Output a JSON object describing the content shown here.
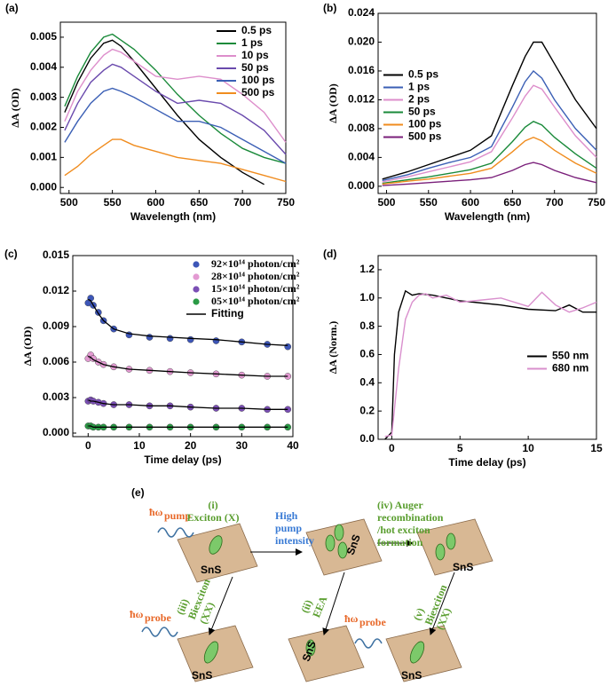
{
  "chart_data": [
    {
      "type": "line",
      "label": "(a)",
      "xlabel": "Wavelength (nm)",
      "ylabel": "ΔA (OD)",
      "legend": "upper right",
      "xlim": [
        490,
        750
      ],
      "ylim": [
        -0.0002,
        0.0055
      ],
      "xticks": [
        500,
        550,
        600,
        650,
        700,
        750
      ],
      "yticks": [
        {
          "value": 0,
          "label": "0.000"
        },
        0.001,
        0.002,
        0.003,
        0.004,
        0.005
      ],
      "x": [
        495,
        510,
        525,
        540,
        550,
        560,
        575,
        600,
        625,
        650,
        675,
        700,
        725,
        750
      ],
      "series": [
        {
          "name": "0.5 ps",
          "color": "#000000",
          "values": [
            0.0025,
            0.0035,
            0.0043,
            0.0048,
            0.0049,
            0.0047,
            0.0042,
            0.0033,
            0.0024,
            0.0016,
            0.001,
            0.0005,
            0.0001,
            null
          ]
        },
        {
          "name": "1 ps",
          "color": "#1a8a3a",
          "values": [
            0.0027,
            0.0037,
            0.0045,
            0.005,
            0.0051,
            0.0049,
            0.0046,
            0.0039,
            0.0031,
            0.0024,
            0.0018,
            0.0013,
            0.001,
            0.0008
          ]
        },
        {
          "name": "10 ps",
          "color": "#dd8ecb",
          "values": [
            0.0022,
            0.0032,
            0.0039,
            0.0044,
            0.0046,
            0.0045,
            0.0042,
            0.0037,
            0.0036,
            0.0037,
            0.0036,
            0.0031,
            0.0025,
            0.0015
          ]
        },
        {
          "name": "50 ps",
          "color": "#6a4aad",
          "values": [
            0.0019,
            0.0028,
            0.0035,
            0.0039,
            0.0041,
            0.004,
            0.0037,
            0.0032,
            0.0028,
            0.0029,
            0.0028,
            0.0024,
            0.0019,
            0.0011
          ]
        },
        {
          "name": "100 ps",
          "color": "#3b5fb5",
          "values": [
            0.0015,
            0.0022,
            0.0028,
            0.0032,
            0.0033,
            0.0032,
            0.003,
            0.0026,
            0.0022,
            0.0022,
            0.002,
            0.0016,
            0.0012,
            0.0008
          ]
        },
        {
          "name": "500 ps",
          "color": "#f08c1e",
          "values": [
            0.0004,
            0.0007,
            0.0011,
            0.0014,
            0.0016,
            0.0016,
            0.0014,
            0.0012,
            0.001,
            0.0009,
            0.0008,
            0.0006,
            0.0004,
            0.0002
          ]
        }
      ]
    },
    {
      "type": "line",
      "label": "(b)",
      "xlabel": "Wavelength (nm)",
      "ylabel": "ΔA (OD)",
      "legend": "center left",
      "xlim": [
        490,
        750
      ],
      "ylim": [
        -0.001,
        0.024
      ],
      "xticks": [
        500,
        550,
        600,
        650,
        700,
        750
      ],
      "yticks": [
        {
          "value": 0,
          "label": "0.000"
        },
        0.004,
        0.008,
        0.012,
        0.016,
        {
          "value": 0.02,
          "label": "0.020"
        },
        0.024
      ],
      "x": [
        495,
        525,
        550,
        575,
        600,
        625,
        650,
        665,
        675,
        685,
        700,
        725,
        750
      ],
      "series": [
        {
          "name": "0.5 ps",
          "color": "#000000",
          "values": [
            0.001,
            0.002,
            0.003,
            0.004,
            0.005,
            0.007,
            0.014,
            0.018,
            0.02,
            0.02,
            0.017,
            0.012,
            0.008
          ]
        },
        {
          "name": "1 ps",
          "color": "#3b5fb5",
          "values": [
            0.0008,
            0.0016,
            0.0025,
            0.0033,
            0.004,
            0.0055,
            0.011,
            0.0145,
            0.016,
            0.015,
            0.012,
            0.008,
            0.005
          ]
        },
        {
          "name": "2 ps",
          "color": "#dd8ecb",
          "values": [
            0.0006,
            0.0013,
            0.002,
            0.0027,
            0.0034,
            0.0048,
            0.0095,
            0.0125,
            0.014,
            0.0135,
            0.011,
            0.007,
            0.004
          ]
        },
        {
          "name": "50 ps",
          "color": "#1a8a3a",
          "values": [
            0.0004,
            0.0009,
            0.0013,
            0.0018,
            0.0023,
            0.0032,
            0.0062,
            0.0082,
            0.009,
            0.0085,
            0.0068,
            0.0045,
            0.0025
          ]
        },
        {
          "name": "100 ps",
          "color": "#f08c1e",
          "values": [
            0.0003,
            0.0007,
            0.001,
            0.0014,
            0.0018,
            0.0025,
            0.0048,
            0.0063,
            0.0068,
            0.0063,
            0.005,
            0.0032,
            0.0018
          ]
        },
        {
          "name": "500 ps",
          "color": "#7a1f7a",
          "values": [
            0.0001,
            0.0003,
            0.0005,
            0.0007,
            0.0009,
            0.0012,
            0.0022,
            0.003,
            0.0033,
            0.003,
            0.0022,
            0.0012,
            0.0005
          ]
        }
      ]
    },
    {
      "type": "scatter",
      "label": "(c)",
      "xlabel": "Time delay (ps)",
      "ylabel": "ΔA (OD)",
      "legend": "upper right",
      "xlim": [
        -3,
        40
      ],
      "ylim": [
        -0.0003,
        0.015
      ],
      "xticks": [
        0,
        10,
        20,
        30,
        40
      ],
      "yticks": [
        {
          "value": 0,
          "label": "0.000"
        },
        0.003,
        0.006,
        0.009,
        0.012,
        0.015
      ],
      "x": [
        0,
        0.5,
        1,
        2,
        3,
        5,
        8,
        12,
        16,
        20,
        25,
        30,
        35,
        39
      ],
      "fit_name": "Fitting",
      "series": [
        {
          "name": "92×10¹⁴ photon/cm²",
          "color": "#3d56b8",
          "values": [
            0.011,
            0.0114,
            0.0108,
            0.0102,
            0.0095,
            0.0088,
            0.0083,
            0.0081,
            0.008,
            0.0079,
            0.0078,
            0.0077,
            0.0075,
            0.0073
          ],
          "fit": [
            0.0113,
            0.0112,
            0.0108,
            0.0101,
            0.0095,
            0.0088,
            0.0084,
            0.0082,
            0.0081,
            0.008,
            0.0079,
            0.0077,
            0.0075,
            0.0074
          ]
        },
        {
          "name": "28×10¹⁴ photon/cm²",
          "color": "#e39ad2",
          "values": [
            0.0063,
            0.0066,
            0.0063,
            0.006,
            0.0058,
            0.0056,
            0.0054,
            0.0053,
            0.0052,
            0.0051,
            0.005,
            0.0049,
            0.0048,
            0.0048
          ],
          "fit": [
            0.0065,
            0.0064,
            0.0062,
            0.006,
            0.0058,
            0.0056,
            0.0054,
            0.0053,
            0.0052,
            0.0051,
            0.005,
            0.0049,
            0.0048,
            0.0048
          ]
        },
        {
          "name": "15×10¹⁴ photon/cm²",
          "color": "#7b4fb5",
          "values": [
            0.0027,
            0.0028,
            0.0027,
            0.0026,
            0.0025,
            0.0024,
            0.0024,
            0.0023,
            0.0023,
            0.0022,
            0.0021,
            0.0021,
            0.002,
            0.002
          ],
          "fit": [
            0.0028,
            0.0027,
            0.0027,
            0.0026,
            0.0025,
            0.0024,
            0.0024,
            0.0023,
            0.0023,
            0.0022,
            0.0021,
            0.0021,
            0.002,
            0.002
          ]
        },
        {
          "name": "05×10¹⁴ photon/cm²",
          "color": "#2a9a45",
          "values": [
            0.0006,
            0.0006,
            0.0005,
            0.0005,
            0.0005,
            0.0005,
            0.0005,
            0.0005,
            0.0005,
            0.0005,
            0.0005,
            0.0005,
            0.0005,
            0.0005
          ],
          "fit": [
            0.0006,
            0.0006,
            0.0005,
            0.0005,
            0.0005,
            0.0005,
            0.0005,
            0.0005,
            0.0005,
            0.0005,
            0.0005,
            0.0005,
            0.0005,
            0.0005
          ]
        }
      ]
    },
    {
      "type": "line",
      "label": "(d)",
      "xlabel": "Time delay (ps)",
      "ylabel": "ΔA (Norm.)",
      "legend": "center right",
      "xlim": [
        -1,
        15
      ],
      "ylim": [
        0,
        1.3
      ],
      "xticks": [
        0,
        5,
        10,
        15
      ],
      "yticks": [
        {
          "value": 0,
          "label": "0.0"
        },
        0.2,
        0.4,
        0.6,
        0.8,
        {
          "value": 1,
          "label": "1.0"
        },
        1.2
      ],
      "series": [
        {
          "name": "550 nm",
          "color": "#000000",
          "x": [
            -0.5,
            0,
            0.2,
            0.5,
            1,
            1.5,
            2,
            3,
            4,
            5,
            6,
            8,
            10,
            12,
            13,
            14,
            15
          ],
          "values": [
            0,
            0.05,
            0.6,
            0.9,
            1.05,
            1.02,
            1.03,
            1.02,
            1.0,
            0.98,
            0.97,
            0.95,
            0.92,
            0.91,
            0.95,
            0.9,
            0.9
          ]
        },
        {
          "name": "680 nm",
          "color": "#d98fcd",
          "x": [
            -0.5,
            0,
            0.5,
            1,
            1.5,
            2,
            2.5,
            3,
            4,
            5,
            6,
            8,
            10,
            11,
            12,
            13,
            14,
            15
          ],
          "values": [
            0.02,
            0.03,
            0.5,
            0.85,
            0.97,
            1.02,
            1.03,
            1.0,
            1.02,
            0.97,
            0.98,
            1.0,
            0.94,
            1.04,
            0.95,
            0.9,
            0.93,
            0.97
          ]
        }
      ]
    }
  ],
  "diagram": {
    "label": "(e)",
    "pump": "ħω",
    "pump_sub": "pump",
    "probe": "ħω",
    "probe_sub": "probe",
    "step_i": "(i)",
    "exciton": "Exciton (X)",
    "high": "High",
    "pump_word": "pump",
    "intensity": "intensity",
    "step_iv": "(iv) Auger",
    "recomb": "recombination",
    "hot": "/hot exciton",
    "formation": "formation",
    "step_iii": "(iii)",
    "biexciton": "Biexciton",
    "xx": "(XX)",
    "step_ii": "(ii)",
    "eea": "EEA",
    "step_v": "(v)",
    "biexciton2": "Biexciton",
    "xx2": "(XX)",
    "sns": "SnS"
  }
}
